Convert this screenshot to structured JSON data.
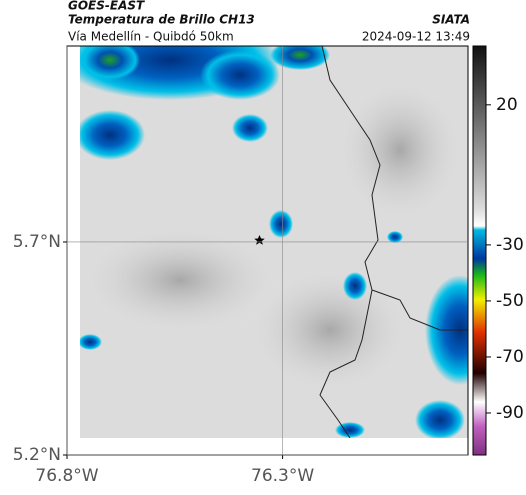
{
  "header": {
    "title": "GOES-EAST",
    "subtitle": "Temperatura de Brillo CH13",
    "source": "SIATA",
    "route": "Vía Medellín - Quibdó 50km",
    "timestamp": "2024-09-12 13:49"
  },
  "map": {
    "xlim": [
      -76.8,
      -75.87
    ],
    "ylim": [
      5.2,
      6.16
    ],
    "xticks": [
      {
        "value": -76.8,
        "label": "76.8°W"
      },
      {
        "value": -76.3,
        "label": "76.3°W"
      }
    ],
    "yticks": [
      {
        "value": 5.7,
        "label": "5.7°N"
      },
      {
        "value": 5.2,
        "label": "5.2°N"
      }
    ],
    "grid": true
  },
  "colorbar": {
    "lim": [
      41,
      -105
    ],
    "ticks": [
      20,
      -30,
      -50,
      -70,
      -90
    ]
  }
}
